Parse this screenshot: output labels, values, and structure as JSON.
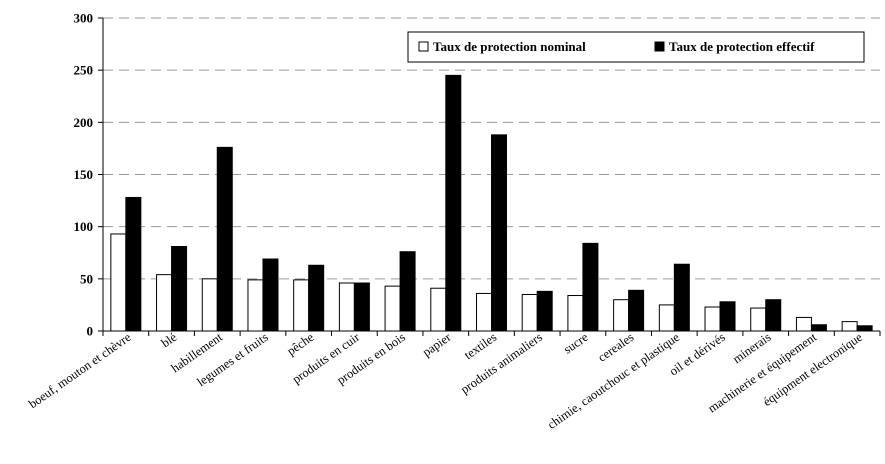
{
  "chart_data": {
    "type": "bar",
    "categories": [
      "boeuf, mouton et  chèvre",
      "blé",
      "habillement",
      "legumes et fruits",
      "pêche",
      "produits en cuir",
      "produits en bois",
      "papier",
      "textiles",
      "produits animaliers",
      "sucre",
      "cereales",
      "chimie, caoutchouc et plastique",
      "oil et dérivés",
      "minerais",
      "machinerie et équipement",
      "équipment electronique"
    ],
    "series": [
      {
        "name": "Taux de protection nominal",
        "color": "#ffffff",
        "values": [
          93,
          54,
          50,
          49,
          49,
          46,
          43,
          41,
          36,
          35,
          34,
          30,
          25,
          23,
          22,
          13,
          9
        ]
      },
      {
        "name": "Taux de protection effectif",
        "color": "#000000",
        "values": [
          128,
          81,
          176,
          69,
          63,
          46,
          76,
          245,
          188,
          38,
          84,
          39,
          64,
          28,
          30,
          6,
          5
        ]
      }
    ],
    "y_ticks": [
      "0",
      "50",
      "100",
      "150",
      "200",
      "250",
      "300"
    ],
    "ylim": [
      0,
      300
    ],
    "grid": true,
    "legend_position": "top-right"
  }
}
